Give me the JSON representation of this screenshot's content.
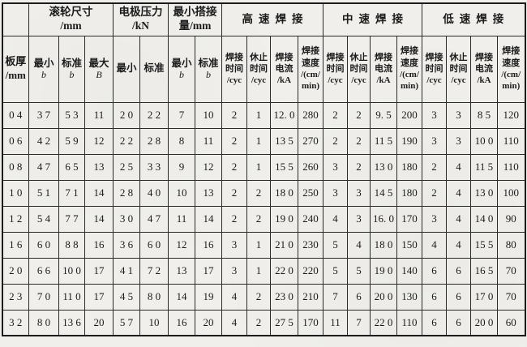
{
  "page": {
    "ink_color": "#1b1b1b",
    "paper_color": "#f0efeb"
  },
  "table": {
    "corner_label": "板厚\n/mm",
    "groups": [
      {
        "title": "滚轮尺寸\n/mm",
        "span": 3,
        "spaced": false
      },
      {
        "title": "电极压力\n/kN",
        "span": 2,
        "spaced": false
      },
      {
        "title": "最小搭接\n量/mm",
        "span": 2,
        "spaced": false
      },
      {
        "title": "高速焊接",
        "span": 4,
        "spaced": true
      },
      {
        "title": "中速焊接",
        "span": 4,
        "spaced": true
      },
      {
        "title": "低速焊接",
        "span": 4,
        "spaced": true
      }
    ],
    "subheaders": [
      {
        "main": "最小",
        "letter": "b"
      },
      {
        "main": "标准",
        "letter": "b"
      },
      {
        "main": "最大",
        "letter": "B"
      },
      {
        "main": "最小"
      },
      {
        "main": "标准"
      },
      {
        "main": "最小",
        "letter": "b"
      },
      {
        "main": "标准",
        "letter": "b"
      },
      {
        "main": "焊接\n时间\n/cyc",
        "multiline": true
      },
      {
        "main": "休止\n时间\n/cyc",
        "multiline": true
      },
      {
        "main": "焊接\n电流\n/kA",
        "multiline": true
      },
      {
        "main": "焊接\n速度\n/(cm/\nmin)",
        "multiline": true
      },
      {
        "main": "焊接\n时间\n/cyc",
        "multiline": true
      },
      {
        "main": "休止\n时间\n/cyc",
        "multiline": true
      },
      {
        "main": "焊接\n电流\n/kA",
        "multiline": true
      },
      {
        "main": "焊接\n速度\n/(cm/\nmin)",
        "multiline": true
      },
      {
        "main": "焊接\n时间\n/cyc",
        "multiline": true
      },
      {
        "main": "休止\n时间\n/cyc",
        "multiline": true
      },
      {
        "main": "焊接\n电流\n/kA",
        "multiline": true
      },
      {
        "main": "焊接\n速度\n/(cm/\nmin)",
        "multiline": true
      }
    ],
    "rows": [
      [
        "0 4",
        "3 7",
        "5 3",
        "11",
        "2 0",
        "2 2",
        "7",
        "10",
        "2",
        "1",
        "12. 0",
        "280",
        "2",
        "2",
        "9. 5",
        "200",
        "3",
        "3",
        "8 5",
        "120"
      ],
      [
        "0 6",
        "4 2",
        "5 9",
        "12",
        "2 2",
        "2 8",
        "8",
        "11",
        "2",
        "1",
        "13 5",
        "270",
        "2",
        "2",
        "11 5",
        "190",
        "3",
        "3",
        "10 0",
        "110"
      ],
      [
        "0 8",
        "4 7",
        "6 5",
        "13",
        "2 5",
        "3 3",
        "9",
        "12",
        "2",
        "1",
        "15 5",
        "260",
        "3",
        "2",
        "13 0",
        "180",
        "2",
        "4",
        "11 5",
        "110"
      ],
      [
        "1 0",
        "5 1",
        "7 1",
        "14",
        "2 8",
        "4 0",
        "10",
        "13",
        "2",
        "2",
        "18 0",
        "250",
        "3",
        "3",
        "14 5",
        "180",
        "2",
        "4",
        "13 0",
        "100"
      ],
      [
        "1 2",
        "5 4",
        "7 7",
        "14",
        "3 0",
        "4 7",
        "11",
        "14",
        "2",
        "2",
        "19 0",
        "240",
        "4",
        "3",
        "16. 0",
        "170",
        "3",
        "4",
        "14 0",
        "90"
      ],
      [
        "1 6",
        "6 0",
        "8 8",
        "16",
        "3 6",
        "6 0",
        "12",
        "16",
        "3",
        "1",
        "21 0",
        "230",
        "5",
        "4",
        "18 0",
        "150",
        "4",
        "4",
        "15 5",
        "80"
      ],
      [
        "2 0",
        "6 6",
        "10 0",
        "17",
        "4 1",
        "7 2",
        "13",
        "17",
        "3",
        "1",
        "22 0",
        "220",
        "5",
        "5",
        "19 0",
        "140",
        "6",
        "6",
        "16 5",
        "70"
      ],
      [
        "2 3",
        "7 0",
        "11 0",
        "17",
        "4 5",
        "8 0",
        "14",
        "19",
        "4",
        "2",
        "23 0",
        "210",
        "7",
        "6",
        "20 0",
        "130",
        "6",
        "6",
        "17 0",
        "70"
      ],
      [
        "3 2",
        "8 0",
        "13 6",
        "20",
        "5 7",
        "10",
        "16",
        "20",
        "4",
        "2",
        "27 5",
        "170",
        "11",
        "7",
        "22 0",
        "110",
        "6",
        "6",
        "20 0",
        "60"
      ]
    ]
  }
}
